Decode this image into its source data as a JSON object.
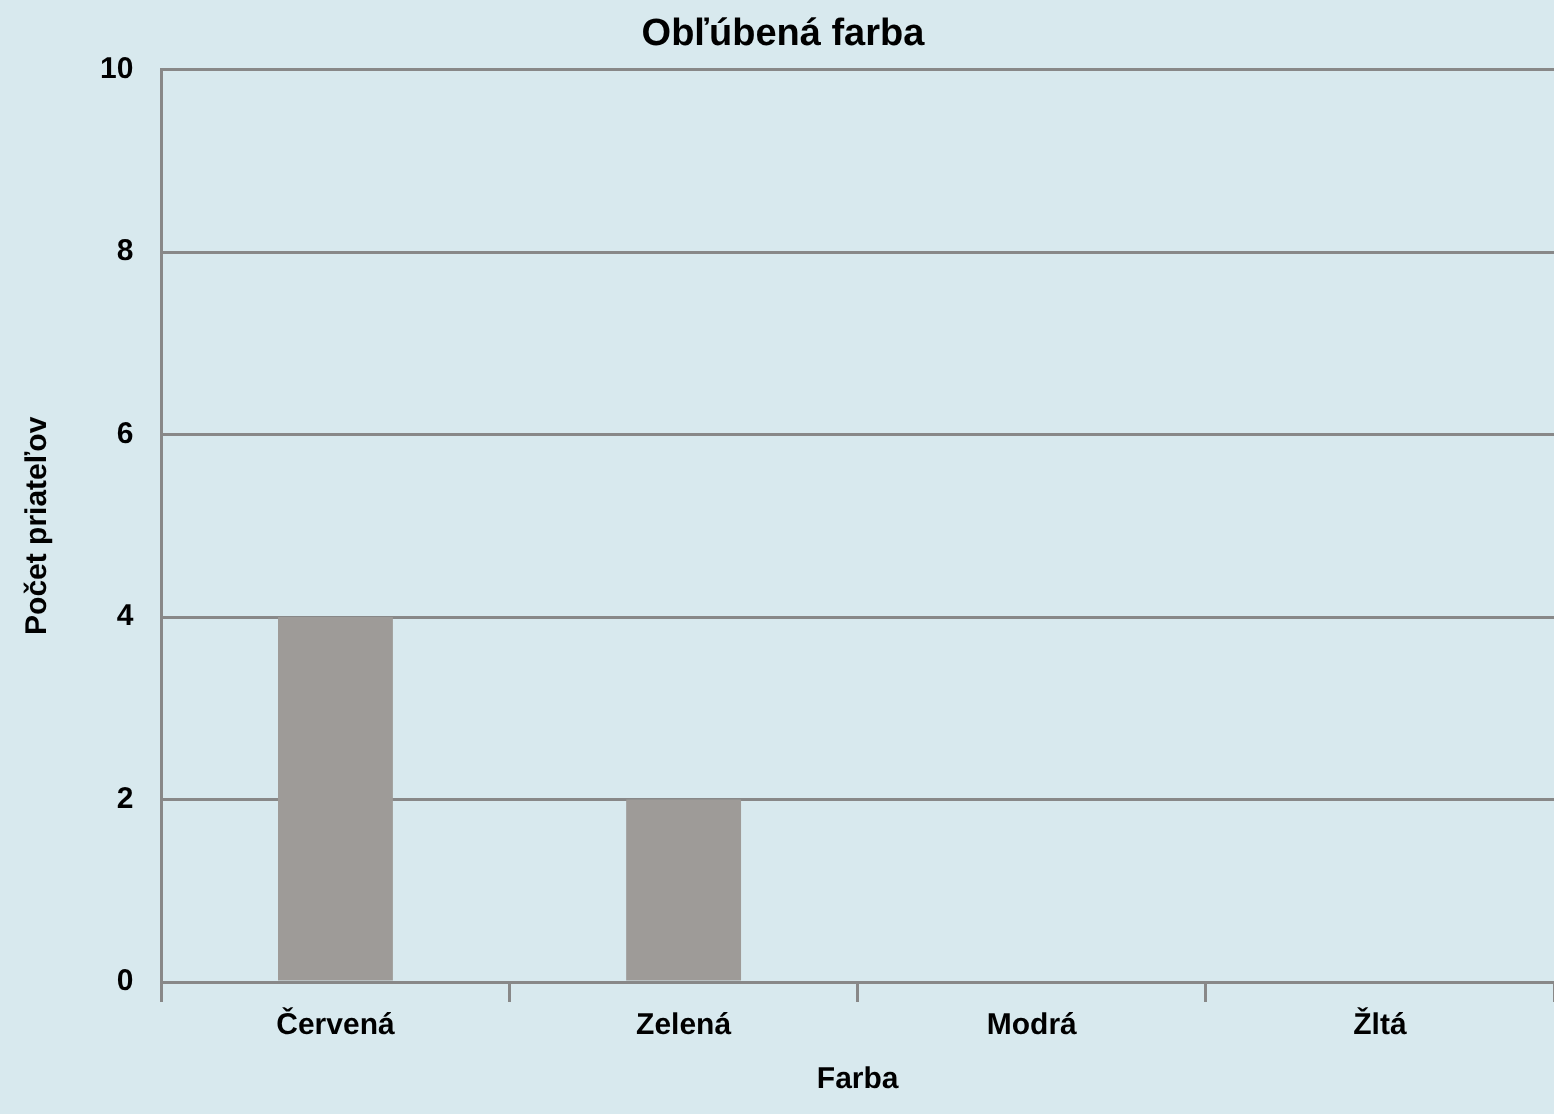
{
  "chart_data": {
    "type": "bar",
    "title": "Obľúbená farba",
    "xlabel": "Farba",
    "ylabel": "Počet priateľov",
    "categories": [
      "Červená",
      "Zelená",
      "Modrá",
      "Žltá"
    ],
    "values": [
      4,
      2,
      0,
      0
    ],
    "color": "#9e9b98",
    "ylim": [
      0,
      10
    ],
    "yticks": [
      0,
      2,
      4,
      6,
      8,
      10
    ],
    "grid": "y"
  }
}
